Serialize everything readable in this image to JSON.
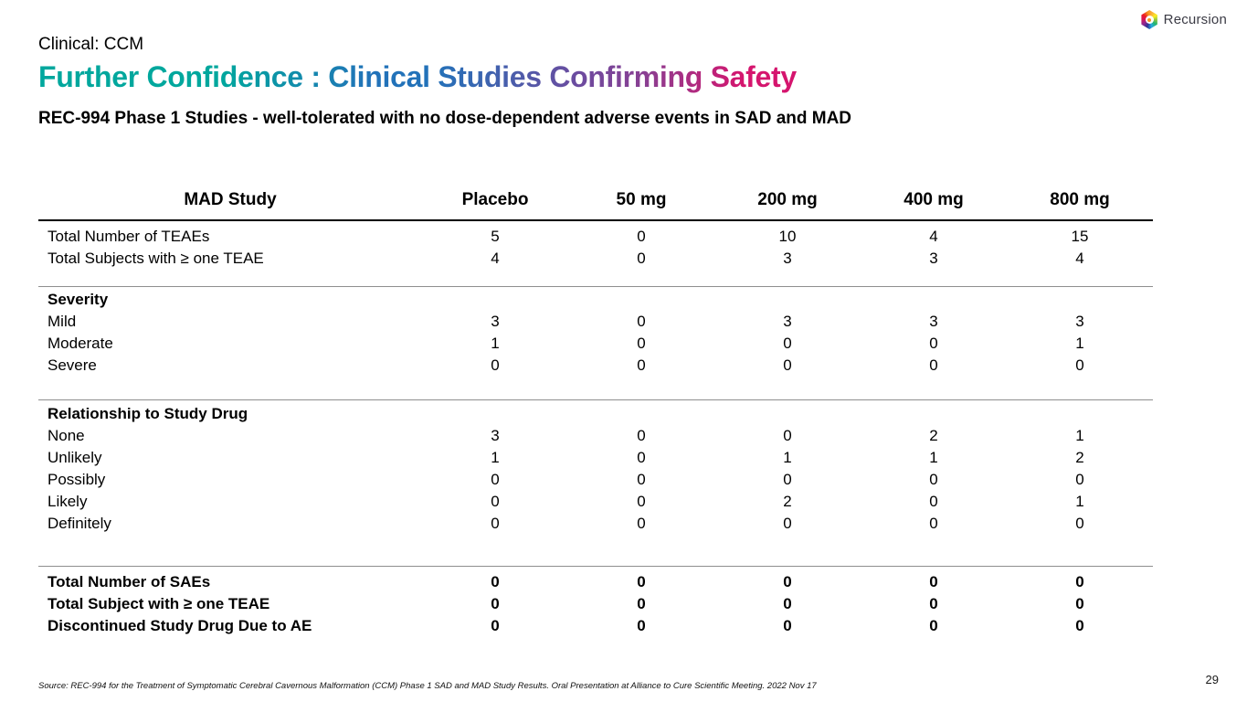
{
  "brand": {
    "logo_icon": "recursion-hexagon-logo",
    "logo_text": "Recursion"
  },
  "header": {
    "eyebrow": "Clinical: CCM",
    "title": "Further Confidence : Clinical Studies Confirming Safety",
    "title_gradient_colors": [
      "#00A79D",
      "#2272B9",
      "#6F4A9E",
      "#D5156E"
    ],
    "subtitle": "REC-994 Phase 1 Studies - well-tolerated with no dose-dependent adverse events in SAD and MAD"
  },
  "table": {
    "col_header": "MAD Study",
    "columns": [
      "Placebo",
      "50 mg",
      "200 mg",
      "400 mg",
      "800 mg"
    ],
    "rows": [
      {
        "label": "Total Number of TEAEs",
        "values": [
          "5",
          "0",
          "10",
          "4",
          "15"
        ],
        "bold": false
      },
      {
        "label": "Total Subjects with ≥ one TEAE",
        "values": [
          "4",
          "0",
          "3",
          "3",
          "4"
        ],
        "bold": false
      },
      {
        "type": "separator"
      },
      {
        "label": "Severity",
        "values": [
          "",
          "",
          "",
          "",
          ""
        ],
        "bold": true
      },
      {
        "label": "Mild",
        "values": [
          "3",
          "0",
          "3",
          "3",
          "3"
        ],
        "bold": false
      },
      {
        "label": "Moderate",
        "values": [
          "1",
          "0",
          "0",
          "0",
          "1"
        ],
        "bold": false
      },
      {
        "label": "Severe",
        "values": [
          "0",
          "0",
          "0",
          "0",
          "0"
        ],
        "bold": false
      },
      {
        "type": "separator"
      },
      {
        "label": "Relationship to Study Drug",
        "values": [
          "",
          "",
          "",
          "",
          ""
        ],
        "bold": true
      },
      {
        "label": "None",
        "values": [
          "3",
          "0",
          "0",
          "2",
          "1"
        ],
        "bold": false
      },
      {
        "label": "Unlikely",
        "values": [
          "1",
          "0",
          "1",
          "1",
          "2"
        ],
        "bold": false
      },
      {
        "label": "Possibly",
        "values": [
          "0",
          "0",
          "0",
          "0",
          "0"
        ],
        "bold": false
      },
      {
        "label": "Likely",
        "values": [
          "0",
          "0",
          "2",
          "0",
          "1"
        ],
        "bold": false
      },
      {
        "label": "Definitely",
        "values": [
          "0",
          "0",
          "0",
          "0",
          "0"
        ],
        "bold": false
      },
      {
        "type": "separator"
      },
      {
        "label": "Total Number of SAEs",
        "values": [
          "0",
          "0",
          "0",
          "0",
          "0"
        ],
        "bold": true
      },
      {
        "label": "Total Subject with ≥ one TEAE",
        "values": [
          "0",
          "0",
          "0",
          "0",
          "0"
        ],
        "bold": true
      },
      {
        "label": "Discontinued Study Drug Due to AE",
        "values": [
          "0",
          "0",
          "0",
          "0",
          "0"
        ],
        "bold": true
      }
    ]
  },
  "footer": {
    "source": "Source: REC-994 for the Treatment of Symptomatic Cerebral Cavernous Malformation (CCM) Phase 1 SAD and MAD Study Results. Oral Presentation at Alliance to Cure Scientific Meeting. 2022 Nov 17",
    "page_number": "29"
  }
}
